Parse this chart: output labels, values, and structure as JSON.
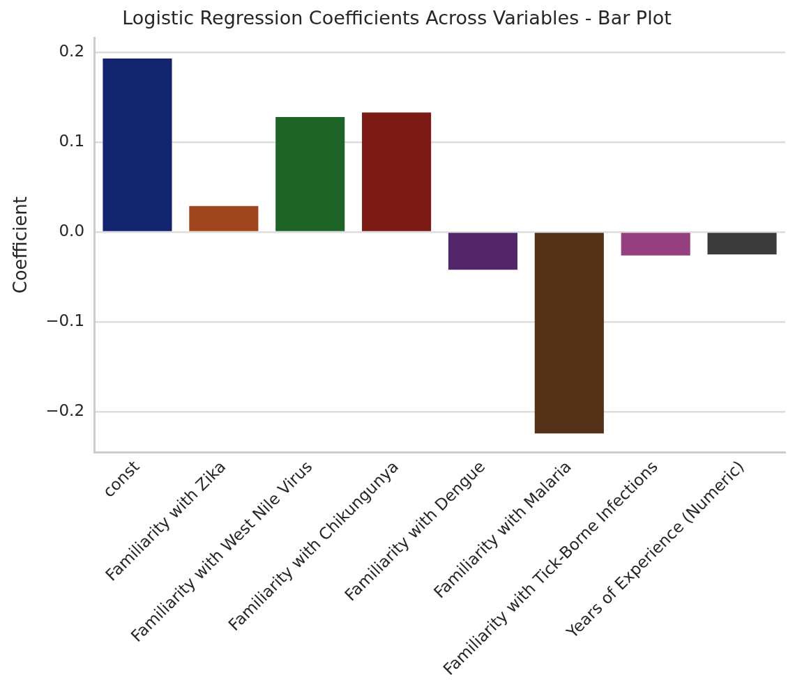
{
  "chart_data": {
    "type": "bar",
    "title": "Logistic Regression Coefficients Across Variables - Bar Plot",
    "ylabel": "Coefficient",
    "categories": [
      "const",
      "Familiarity with Zika",
      "Familiarity with West Nile Virus",
      "Familiarity with Chikungunya",
      "Familiarity with Dengue",
      "Familiarity with Malaria",
      "Familiarity with Tick-Borne Infections",
      "Years of Experience (Numeric)"
    ],
    "values": [
      0.193,
      0.029,
      0.128,
      0.133,
      -0.042,
      -0.224,
      -0.026,
      -0.025
    ],
    "colors": [
      "#12246e",
      "#a0461f",
      "#1e6426",
      "#7b1a15",
      "#53266a",
      "#533016",
      "#974080",
      "#3b3b3b"
    ],
    "ylim": [
      -0.245,
      0.216
    ],
    "yticks": [
      {
        "value": -0.2,
        "label": "−0.2"
      },
      {
        "value": -0.1,
        "label": "−0.1"
      },
      {
        "value": 0,
        "label": "0.0"
      },
      {
        "value": 0.1,
        "label": "0.1"
      },
      {
        "value": 0.2,
        "label": "0.2"
      }
    ],
    "grid": "y",
    "legend": false
  }
}
